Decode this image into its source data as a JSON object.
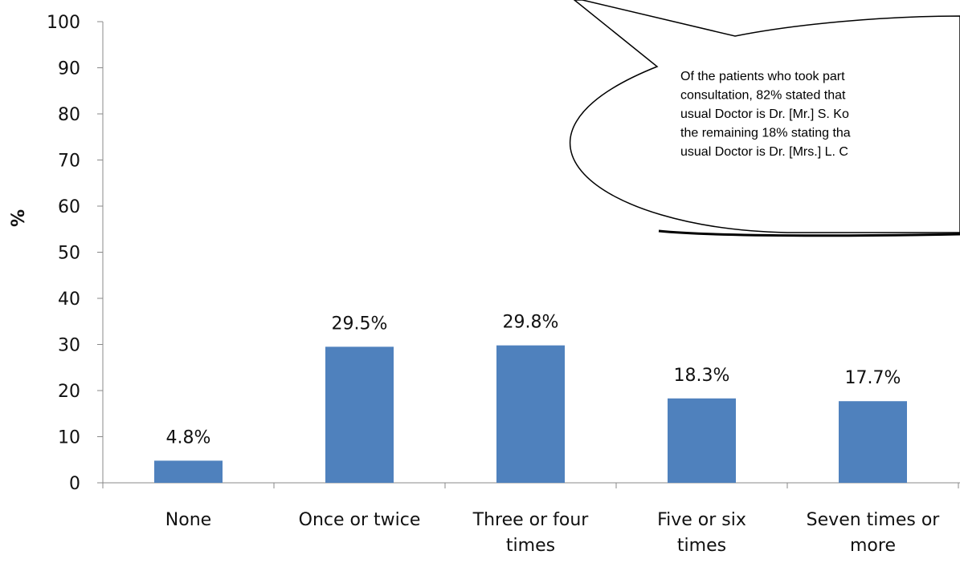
{
  "chart_data": {
    "type": "bar",
    "categories": [
      [
        "None"
      ],
      [
        "Once or twice"
      ],
      [
        "Three or four",
        "times"
      ],
      [
        "Five or six",
        "times"
      ],
      [
        "Seven times or",
        "more"
      ]
    ],
    "values": [
      4.8,
      29.5,
      29.8,
      18.3,
      17.7
    ],
    "data_labels": [
      "4.8%",
      "29.5%",
      "29.8%",
      "18.3%",
      "17.7%"
    ],
    "title": "",
    "xlabel": "",
    "ylabel": "%",
    "ylim": [
      0,
      100
    ],
    "yticks": [
      0,
      10,
      20,
      30,
      40,
      50,
      60,
      70,
      80,
      90,
      100
    ],
    "bar_color": "#4F81BD",
    "grid": false
  },
  "callout": {
    "lines": [
      "Of the patients who took part",
      "consultation, 82% stated that",
      "usual Doctor is Dr. [Mr.] S. Ko",
      "the remaining 18% stating tha",
      "usual Doctor is Dr. [Mrs.] L. C"
    ]
  }
}
